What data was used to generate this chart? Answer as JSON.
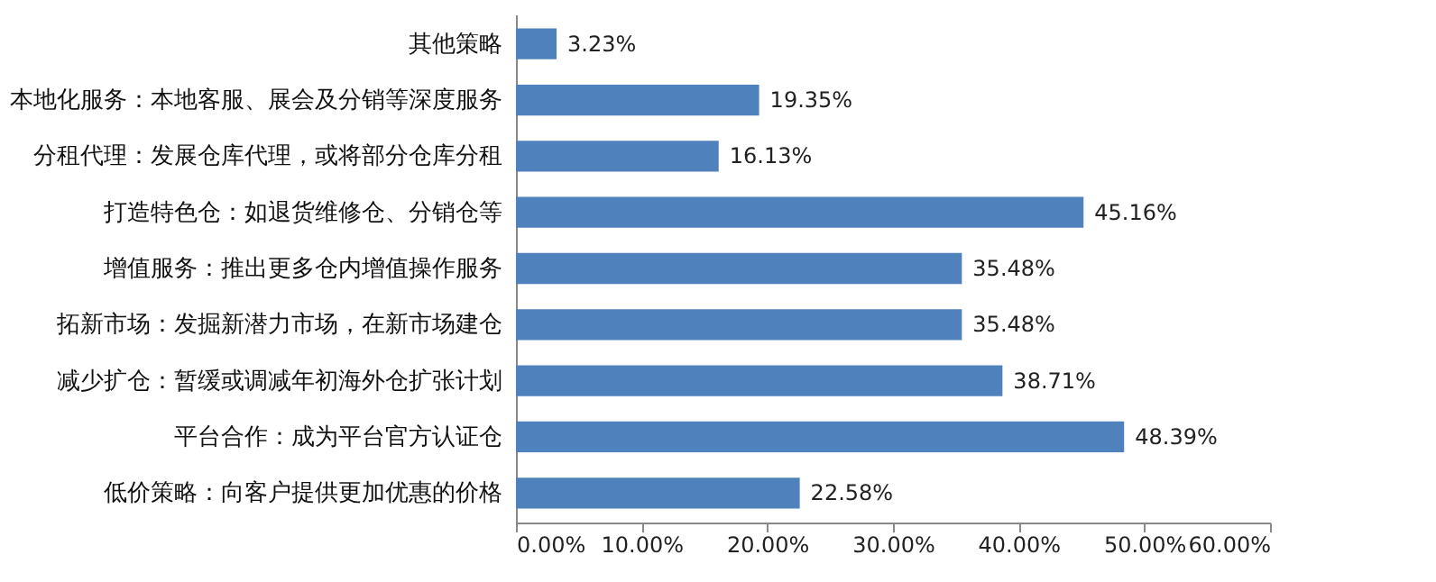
{
  "chart_data": {
    "type": "bar",
    "orientation": "horizontal",
    "categories": [
      "其他策略",
      "本地化服务：本地客服、展会及分销等深度服务",
      "分租代理：发展仓库代理，或将部分仓库分租",
      "打造特色仓：如退货维修仓、分销仓等",
      "增值服务：推出更多仓内增值操作服务",
      "拓新市场：发掘新潜力市场，在新市场建仓",
      "减少扩仓：暂缓或调减年初海外仓扩张计划",
      "平台合作：成为平台官方认证仓",
      "低价策略：向客户提供更加优惠的价格"
    ],
    "values": [
      3.23,
      19.35,
      16.13,
      45.16,
      35.48,
      35.48,
      38.71,
      48.39,
      22.58
    ],
    "value_labels": [
      "3.23%",
      "19.35%",
      "16.13%",
      "45.16%",
      "35.48%",
      "35.48%",
      "38.71%",
      "48.39%",
      "22.58%"
    ],
    "color": "#4f81bd",
    "xlim": [
      0,
      60
    ],
    "xticks": [
      {
        "value": 0,
        "label": "0.00%"
      },
      {
        "value": 10,
        "label": "10.00%"
      },
      {
        "value": 20,
        "label": "20.00%"
      },
      {
        "value": 30,
        "label": "30.00%"
      },
      {
        "value": 40,
        "label": "40.00%"
      },
      {
        "value": 50,
        "label": "50.00%"
      },
      {
        "value": 60,
        "label": "60.00%"
      }
    ],
    "grid": false
  }
}
